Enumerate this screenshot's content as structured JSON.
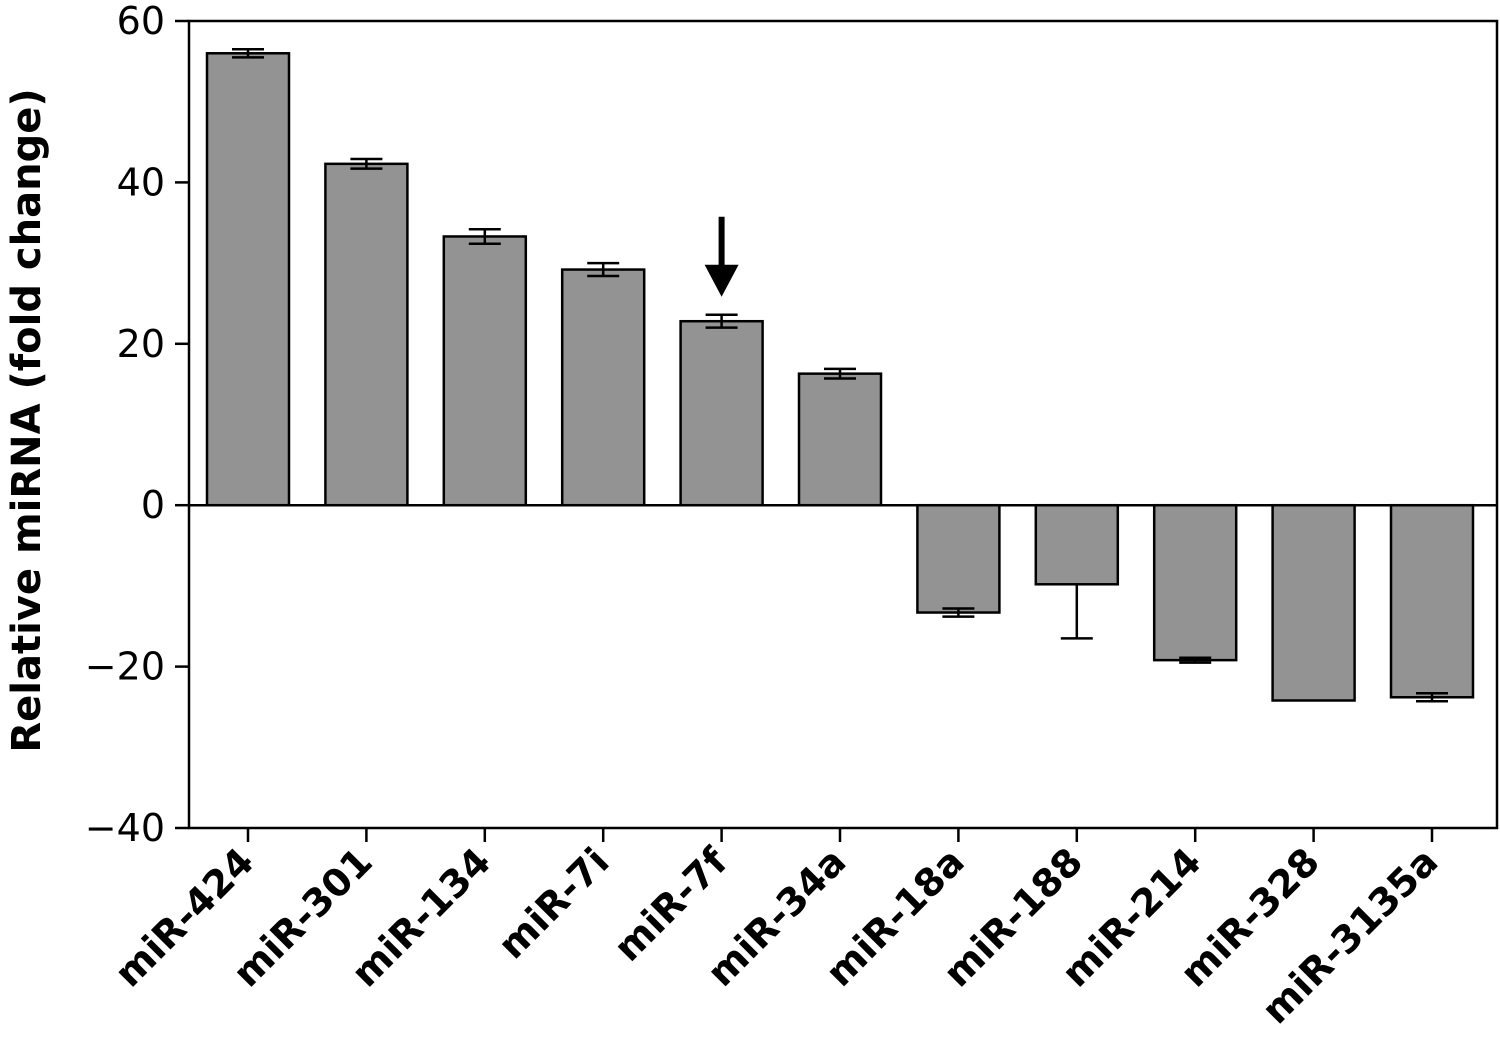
{
  "chart_data": {
    "type": "bar",
    "title": "",
    "xlabel": "",
    "ylabel": "Relative miRNA (fold change)",
    "ylim": [
      -40,
      60
    ],
    "yticks": [
      60,
      40,
      20,
      0,
      -20,
      -40
    ],
    "ytick_labels": [
      "60",
      "40",
      "20",
      "0",
      "−20",
      "−40"
    ],
    "grid": false,
    "legend": "none",
    "bar_color": "#939393",
    "categories": [
      "miR-424",
      "miR-301",
      "miR-134",
      "miR-7i",
      "miR-7f",
      "miR-34a",
      "miR-18a",
      "miR-188",
      "miR-214",
      "miR-328",
      "miR-3135a"
    ],
    "values": [
      56,
      42.3,
      33.3,
      29.2,
      22.8,
      16.3,
      -13.3,
      -9.8,
      -19.2,
      -24.2,
      -23.8
    ],
    "errors": [
      0.5,
      0.6,
      0.9,
      0.8,
      0.8,
      0.6,
      0.5,
      6.7,
      0.3,
      0,
      0.5
    ],
    "annotations": [
      {
        "type": "arrow",
        "category": "miR-7f",
        "direction": "down"
      }
    ]
  }
}
